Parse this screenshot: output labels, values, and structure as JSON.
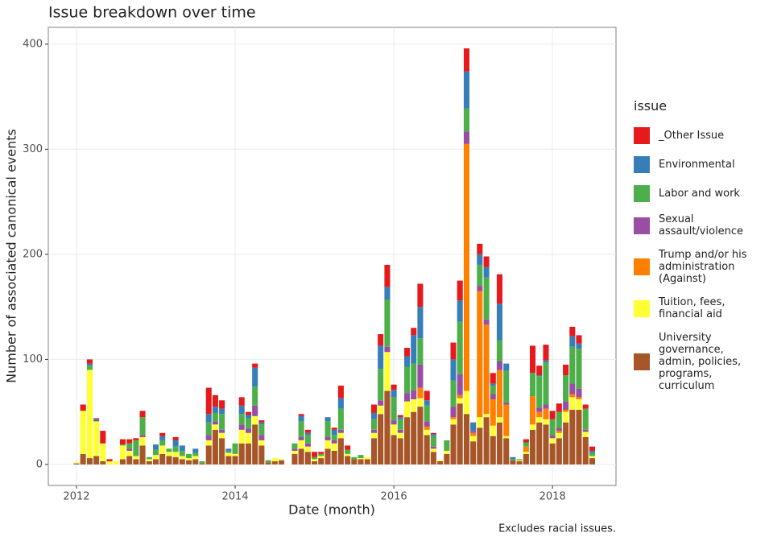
{
  "chart_data": {
    "type": "stacked-bar",
    "title": "Issue breakdown over time",
    "x_label": "Date (month)",
    "y_label": "Number of associated canonical events",
    "legend_title": "issue",
    "caption": "Excludes racial issues.",
    "xlim": [
      2011.645,
      2018.8
    ],
    "xticks": [
      2012,
      2014,
      2016,
      2018
    ],
    "ylim": [
      -20,
      416
    ],
    "yticks": [
      0,
      100,
      200,
      300,
      400
    ],
    "grid": true,
    "legend_position": "right",
    "x": [
      2012,
      2012.083,
      2012.167,
      2012.25,
      2012.333,
      2012.417,
      2012.5,
      2012.583,
      2012.667,
      2012.75,
      2012.833,
      2012.917,
      2013,
      2013.083,
      2013.167,
      2013.25,
      2013.333,
      2013.417,
      2013.5,
      2013.583,
      2013.667,
      2013.75,
      2013.833,
      2013.917,
      2014,
      2014.083,
      2014.167,
      2014.25,
      2014.333,
      2014.417,
      2014.5,
      2014.583,
      2014.667,
      2014.75,
      2014.833,
      2014.917,
      2015,
      2015.083,
      2015.167,
      2015.25,
      2015.333,
      2015.417,
      2015.5,
      2015.583,
      2015.667,
      2015.75,
      2015.833,
      2015.917,
      2016,
      2016.083,
      2016.167,
      2016.25,
      2016.333,
      2016.417,
      2016.5,
      2016.583,
      2016.667,
      2016.75,
      2016.833,
      2016.917,
      2017,
      2017.083,
      2017.167,
      2017.25,
      2017.333,
      2017.417,
      2017.5,
      2017.583,
      2017.667,
      2017.75,
      2017.833,
      2017.917,
      2018,
      2018.083,
      2018.167,
      2018.25,
      2018.333,
      2018.417,
      2018.5
    ],
    "series": [
      {
        "name": "_Other Issue",
        "color": "#e41a1c",
        "values": [
          0,
          6,
          4,
          1,
          12,
          2,
          0,
          5,
          4,
          2,
          6,
          0,
          0,
          3,
          0,
          3,
          0,
          0,
          0,
          0,
          25,
          11,
          8,
          0,
          0,
          8,
          3,
          4,
          2,
          0,
          0,
          0,
          0,
          0,
          2,
          3,
          5,
          2,
          0,
          2,
          12,
          4,
          0,
          0,
          0,
          8,
          11,
          21,
          5,
          2,
          8,
          7,
          22,
          9,
          1,
          0,
          0,
          16,
          19,
          22,
          0,
          10,
          10,
          10,
          28,
          0,
          0,
          0,
          3,
          26,
          9,
          15,
          8,
          8,
          10,
          9,
          8,
          4,
          4
        ]
      },
      {
        "name": "Environmental",
        "color": "#377eb8",
        "values": [
          0,
          0,
          2,
          2,
          0,
          0,
          0,
          0,
          0,
          0,
          0,
          0,
          5,
          4,
          0,
          6,
          5,
          0,
          4,
          0,
          8,
          6,
          5,
          2,
          0,
          8,
          3,
          18,
          2,
          0,
          0,
          0,
          0,
          0,
          5,
          2,
          0,
          0,
          4,
          5,
          10,
          0,
          0,
          0,
          0,
          6,
          22,
          12,
          7,
          2,
          10,
          27,
          30,
          5,
          2,
          0,
          0,
          20,
          20,
          35,
          8,
          10,
          10,
          2,
          35,
          7,
          2,
          0,
          0,
          0,
          1,
          2,
          0,
          0,
          0,
          10,
          5,
          0,
          2
        ]
      },
      {
        "name": "Labor and work",
        "color": "#4daf4a",
        "values": [
          0,
          0,
          4,
          0,
          0,
          0,
          0,
          1,
          5,
          15,
          17,
          2,
          5,
          5,
          3,
          5,
          5,
          4,
          3,
          2,
          12,
          8,
          15,
          2,
          10,
          10,
          10,
          18,
          10,
          2,
          0,
          0,
          0,
          5,
          15,
          8,
          2,
          2,
          15,
          5,
          20,
          4,
          2,
          3,
          0,
          10,
          30,
          45,
          22,
          10,
          25,
          25,
          25,
          15,
          10,
          0,
          10,
          25,
          50,
          22,
          0,
          20,
          40,
          8,
          20,
          30,
          1,
          1,
          4,
          22,
          30,
          40,
          15,
          15,
          25,
          35,
          38,
          20,
          3
        ]
      },
      {
        "name": "Sexual assault/violence",
        "color": "#984ea3",
        "values": [
          0,
          0,
          0,
          0,
          0,
          0,
          0,
          0,
          2,
          0,
          2,
          0,
          0,
          0,
          0,
          0,
          0,
          0,
          0,
          0,
          5,
          3,
          3,
          0,
          0,
          5,
          4,
          10,
          5,
          0,
          0,
          0,
          0,
          2,
          3,
          3,
          0,
          0,
          3,
          3,
          3,
          0,
          0,
          0,
          0,
          3,
          5,
          5,
          4,
          3,
          8,
          9,
          22,
          5,
          2,
          0,
          0,
          10,
          20,
          12,
          2,
          5,
          5,
          5,
          8,
          2,
          0,
          0,
          0,
          0,
          4,
          4,
          3,
          3,
          8,
          10,
          8,
          2,
          0
        ]
      },
      {
        "name": "Trump and/or his administration (Against)",
        "color": "#ff7f00",
        "values": [
          0,
          0,
          0,
          0,
          0,
          0,
          0,
          0,
          0,
          0,
          0,
          0,
          0,
          0,
          0,
          0,
          0,
          0,
          0,
          0,
          0,
          0,
          0,
          0,
          0,
          0,
          0,
          0,
          0,
          0,
          0,
          0,
          0,
          0,
          0,
          0,
          0,
          0,
          0,
          0,
          0,
          0,
          0,
          0,
          0,
          0,
          0,
          0,
          0,
          0,
          0,
          0,
          10,
          3,
          0,
          0,
          0,
          2,
          3,
          235,
          3,
          120,
          85,
          25,
          45,
          30,
          0,
          0,
          5,
          27,
          5,
          10,
          0,
          2,
          2,
          3,
          2,
          0,
          0
        ]
      },
      {
        "name": "Tuition, fees, financial aid",
        "color": "#ffff33",
        "values": [
          1,
          41,
          84,
          33,
          17,
          3,
          3,
          13,
          5,
          3,
          8,
          2,
          4,
          8,
          4,
          5,
          3,
          2,
          3,
          0,
          5,
          5,
          5,
          3,
          2,
          13,
          10,
          8,
          5,
          0,
          3,
          1,
          0,
          3,
          8,
          5,
          2,
          2,
          8,
          7,
          5,
          2,
          0,
          1,
          2,
          5,
          8,
          37,
          10,
          5,
          15,
          12,
          8,
          5,
          3,
          1,
          3,
          5,
          5,
          22,
          5,
          10,
          3,
          10,
          5,
          2,
          0,
          1,
          2,
          5,
          5,
          5,
          5,
          5,
          10,
          12,
          10,
          5,
          2
        ]
      },
      {
        "name": "University governance, admin, policies, programs, curriculum",
        "color": "#a65628",
        "values": [
          1,
          10,
          6,
          8,
          3,
          0,
          0,
          5,
          8,
          5,
          18,
          3,
          5,
          10,
          8,
          7,
          5,
          4,
          5,
          1,
          18,
          33,
          25,
          8,
          8,
          20,
          20,
          38,
          18,
          2,
          3,
          4,
          0,
          10,
          15,
          12,
          3,
          6,
          15,
          13,
          25,
          8,
          5,
          5,
          5,
          25,
          48,
          70,
          28,
          25,
          45,
          50,
          55,
          28,
          12,
          3,
          10,
          38,
          58,
          48,
          22,
          35,
          45,
          27,
          40,
          25,
          4,
          3,
          10,
          33,
          40,
          38,
          20,
          25,
          40,
          52,
          52,
          26,
          6
        ]
      }
    ]
  }
}
